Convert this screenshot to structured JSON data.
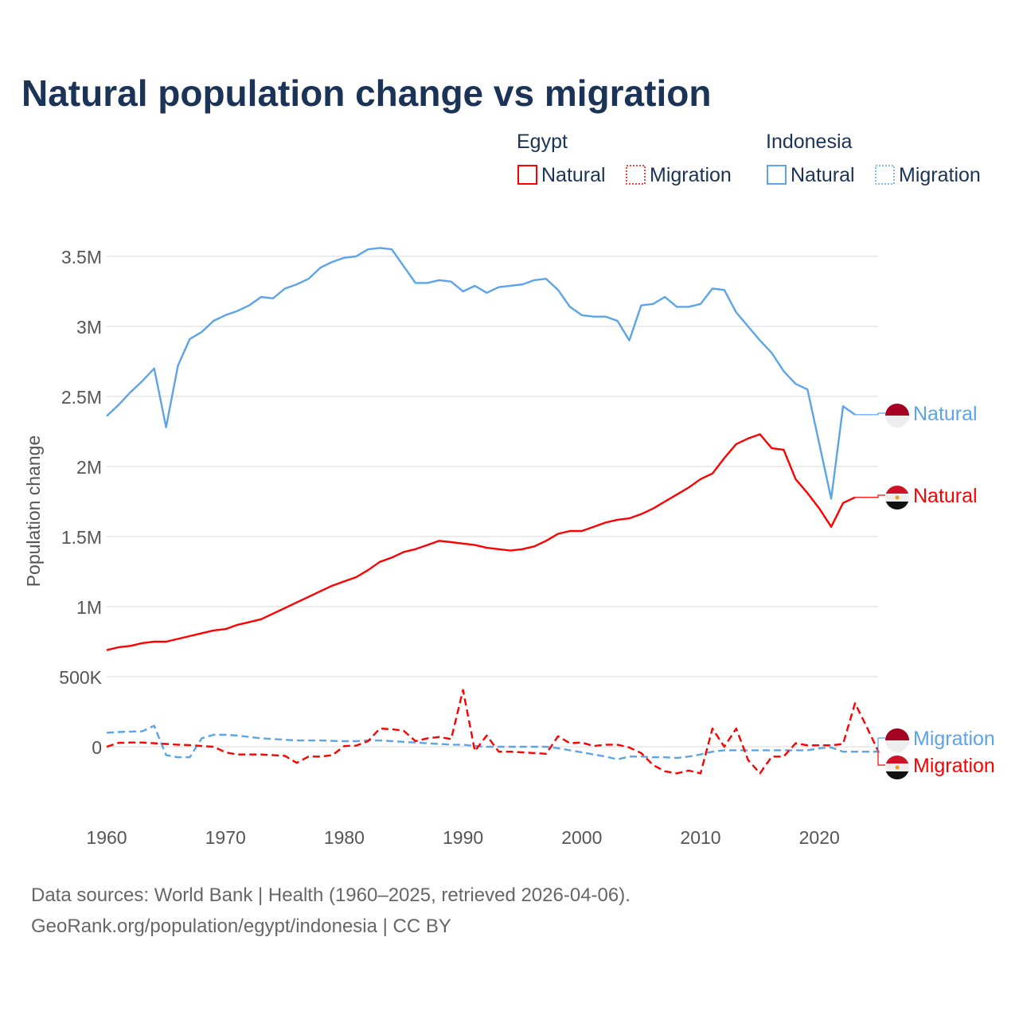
{
  "chart_data": {
    "type": "line",
    "title": "Natural population change vs migration",
    "xlabel": "",
    "ylabel": "Population change",
    "xlim": [
      1960,
      2025
    ],
    "ylim": [
      -400000,
      3800000
    ],
    "grid": true,
    "x_ticks": [
      1960,
      1970,
      1980,
      1990,
      2000,
      2010,
      2020
    ],
    "x_tick_labels": [
      "1960",
      "1970",
      "1980",
      "1990",
      "2000",
      "2010",
      "2020"
    ],
    "y_ticks": [
      0,
      500000,
      1000000,
      1500000,
      2000000,
      2500000,
      3000000,
      3500000
    ],
    "y_tick_labels": [
      "0",
      "500K",
      "1M",
      "1.5M",
      "2M",
      "2.5M",
      "3M",
      "3.5M"
    ],
    "legend": {
      "placement": "top-right",
      "groups": [
        {
          "name": "Egypt",
          "items": [
            "Natural",
            "Migration"
          ]
        },
        {
          "name": "Indonesia",
          "items": [
            "Natural",
            "Migration"
          ]
        }
      ]
    },
    "series": [
      {
        "name": "Indonesia Natural",
        "country": "Indonesia",
        "kind": "Natural",
        "label": "Natural",
        "color": "#5ba4e8",
        "dash": "solid",
        "start_year": 1960,
        "values": [
          2360000,
          2440000,
          2530000,
          2610000,
          2700000,
          2280000,
          2720000,
          2910000,
          2960000,
          3040000,
          3080000,
          3110000,
          3150000,
          3210000,
          3200000,
          3270000,
          3300000,
          3340000,
          3420000,
          3460000,
          3490000,
          3500000,
          3550000,
          3560000,
          3550000,
          3430000,
          3310000,
          3310000,
          3330000,
          3320000,
          3250000,
          3290000,
          3240000,
          3280000,
          3290000,
          3300000,
          3330000,
          3340000,
          3260000,
          3140000,
          3080000,
          3070000,
          3070000,
          3040000,
          2900000,
          3150000,
          3160000,
          3210000,
          3140000,
          3140000,
          3160000,
          3270000,
          3260000,
          3100000,
          3000000,
          2900000,
          2810000,
          2680000,
          2590000,
          2550000,
          2160000,
          1770000,
          2430000,
          2370000
        ]
      },
      {
        "name": "Egypt Natural",
        "country": "Egypt",
        "kind": "Natural",
        "label": "Natural",
        "color": "#ff0000",
        "dash": "solid",
        "start_year": 1960,
        "values": [
          690000,
          710000,
          720000,
          740000,
          750000,
          750000,
          770000,
          790000,
          810000,
          830000,
          840000,
          870000,
          890000,
          910000,
          950000,
          990000,
          1030000,
          1070000,
          1110000,
          1150000,
          1180000,
          1210000,
          1260000,
          1320000,
          1350000,
          1390000,
          1410000,
          1440000,
          1470000,
          1460000,
          1450000,
          1440000,
          1420000,
          1410000,
          1400000,
          1410000,
          1430000,
          1470000,
          1520000,
          1540000,
          1540000,
          1570000,
          1600000,
          1620000,
          1630000,
          1660000,
          1700000,
          1750000,
          1800000,
          1850000,
          1910000,
          1950000,
          2060000,
          2160000,
          2200000,
          2230000,
          2130000,
          2120000,
          1910000,
          1810000,
          1700000,
          1570000,
          1740000,
          1780000
        ]
      },
      {
        "name": "Indonesia Migration",
        "country": "Indonesia",
        "kind": "Migration",
        "label": "Migration",
        "color": "#5ba4e8",
        "dash": "dashed",
        "start_year": 1960,
        "values": [
          100000,
          105000,
          108000,
          110000,
          150000,
          -60000,
          -75000,
          -75000,
          60000,
          85000,
          85000,
          80000,
          70000,
          60000,
          55000,
          50000,
          45000,
          45000,
          45000,
          42000,
          40000,
          40000,
          45000,
          45000,
          40000,
          35000,
          30000,
          25000,
          20000,
          15000,
          15000,
          5000,
          0,
          0,
          0,
          0,
          0,
          0,
          -10000,
          -25000,
          -40000,
          -55000,
          -70000,
          -90000,
          -70000,
          -70000,
          -75000,
          -75000,
          -80000,
          -70000,
          -55000,
          -35000,
          -25000,
          -25000,
          -25000,
          -25000,
          -25000,
          -25000,
          -25000,
          -25000,
          -10000,
          -5000,
          -35000,
          -35000,
          -35000,
          -35000
        ]
      },
      {
        "name": "Egypt Migration",
        "country": "Egypt",
        "kind": "Migration",
        "label": "Migration",
        "color": "#ff0000",
        "dash": "dashed",
        "start_year": 1960,
        "values": [
          0,
          28000,
          30000,
          30000,
          25000,
          20000,
          15000,
          12000,
          5000,
          0,
          -40000,
          -55000,
          -55000,
          -55000,
          -60000,
          -65000,
          -115000,
          -70000,
          -70000,
          -60000,
          5000,
          8000,
          40000,
          130000,
          125000,
          115000,
          40000,
          60000,
          70000,
          55000,
          405000,
          -30000,
          80000,
          -35000,
          -35000,
          -40000,
          -45000,
          -50000,
          75000,
          25000,
          30000,
          5000,
          15000,
          15000,
          -5000,
          -45000,
          -130000,
          -175000,
          -190000,
          -170000,
          -190000,
          130000,
          0,
          130000,
          -95000,
          -190000,
          -70000,
          -70000,
          25000,
          10000,
          10000,
          10000,
          20000,
          310000,
          140000,
          -40000
        ]
      }
    ]
  },
  "footer": {
    "source_line": "Data sources: World Bank | Health (1960–2025, retrieved 2026-04-06).",
    "credit_line": "GeoRank.org/population/egypt/indonesia | CC BY"
  }
}
